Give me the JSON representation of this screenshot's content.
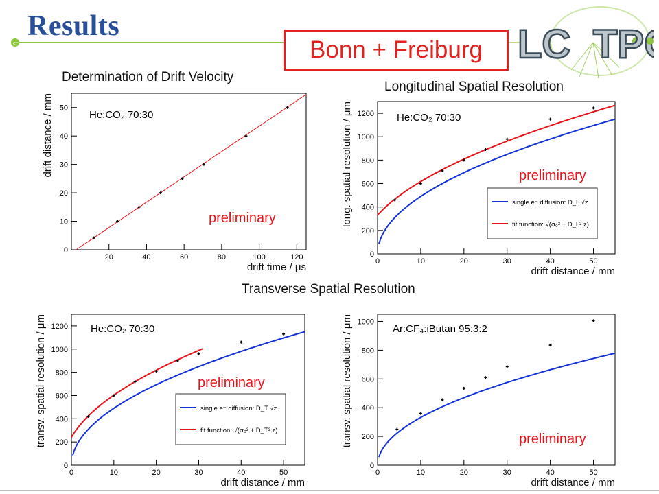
{
  "slide": {
    "title": "Results",
    "badge": "Bonn + Freiburg",
    "logo_text": "LC TPC"
  },
  "panels": {
    "drift_title": "Determination of Drift Velocity",
    "long_title": "Longitudinal Spatial Resolution",
    "trans_title": "Transverse Spatial Resolution"
  },
  "colors": {
    "title": "#2a4f9a",
    "badge": "#e0231e",
    "accent_green": "#8cc63f",
    "fit_red": "#e8141b",
    "diffusion_blue": "#1432d6"
  },
  "chart_data": [
    {
      "id": "drift",
      "type": "scatter",
      "xlabel": "drift time / μs",
      "ylabel": "drift distance / mm",
      "xlim": [
        0,
        125
      ],
      "ylim": [
        0,
        55
      ],
      "xticks": [
        20,
        40,
        60,
        80,
        100,
        120
      ],
      "yticks": [
        0,
        10,
        20,
        30,
        40,
        50
      ],
      "gas_label": "He:CO₂ 70:30",
      "preliminary": "preliminary",
      "points": [
        {
          "x": 12,
          "y": 4.2
        },
        {
          "x": 24.5,
          "y": 10
        },
        {
          "x": 36,
          "y": 15
        },
        {
          "x": 47.5,
          "y": 20
        },
        {
          "x": 59,
          "y": 25
        },
        {
          "x": 70.5,
          "y": 30
        },
        {
          "x": 93,
          "y": 40
        },
        {
          "x": 115,
          "y": 50
        }
      ],
      "fit_line": [
        [
          2.5,
          0
        ],
        [
          125,
          54.6
        ]
      ]
    },
    {
      "id": "long",
      "type": "scatter",
      "xlabel": "drift distance / mm",
      "ylabel": "long. spatial resolution / μm",
      "xlim": [
        0,
        55
      ],
      "ylim": [
        0,
        1300
      ],
      "xticks": [
        0,
        10,
        20,
        30,
        40,
        50
      ],
      "yticks": [
        0,
        200,
        400,
        600,
        800,
        1000,
        1200
      ],
      "gas_label": "He:CO₂ 70:30",
      "preliminary": "preliminary",
      "points": [
        {
          "x": 4,
          "y": 460
        },
        {
          "x": 10,
          "y": 600
        },
        {
          "x": 15,
          "y": 710
        },
        {
          "x": 20,
          "y": 800
        },
        {
          "x": 25,
          "y": 890
        },
        {
          "x": 30,
          "y": 980
        },
        {
          "x": 40,
          "y": 1150
        },
        {
          "x": 50,
          "y": 1245
        }
      ],
      "diffusion_coeff": 155,
      "fit": {
        "sigma0": 330,
        "D": 165,
        "xmax": 55
      },
      "legend": {
        "diffusion": "single e⁻ diffusion: D_L √z",
        "fit": "fit function: √(σ₀² + D_L² z)"
      }
    },
    {
      "id": "trans",
      "type": "scatter",
      "xlabel": "drift distance / mm",
      "ylabel": "transv. spatial resolution / μm",
      "xlim": [
        0,
        55
      ],
      "ylim": [
        0,
        1300
      ],
      "xticks": [
        0,
        10,
        20,
        30,
        40,
        50
      ],
      "yticks": [
        0,
        200,
        400,
        600,
        800,
        1000,
        1200
      ],
      "gas_label": "He:CO₂ 70:30",
      "preliminary": "preliminary",
      "points": [
        {
          "x": 4,
          "y": 420
        },
        {
          "x": 10,
          "y": 600
        },
        {
          "x": 15,
          "y": 720
        },
        {
          "x": 20,
          "y": 810
        },
        {
          "x": 25,
          "y": 900
        },
        {
          "x": 30,
          "y": 960
        },
        {
          "x": 40,
          "y": 1060
        },
        {
          "x": 50,
          "y": 1130
        }
      ],
      "diffusion_coeff": 155,
      "fit": {
        "sigma0": 240,
        "D": 175,
        "xmax": 31
      },
      "legend": {
        "diffusion": "single e⁻ diffusion: D_T √z",
        "fit": "fit function: √(σ₀² + D_T² z)"
      }
    },
    {
      "id": "ar",
      "type": "scatter",
      "xlabel": "drift distance / mm",
      "ylabel": "transv. spatial resolution / μm",
      "xlim": [
        0,
        55
      ],
      "ylim": [
        0,
        1050
      ],
      "xticks": [
        0,
        10,
        20,
        30,
        40,
        50
      ],
      "yticks": [
        0,
        200,
        400,
        600,
        800,
        1000
      ],
      "gas_label": "Ar:CF₄:iButan 95:3:2",
      "preliminary": "preliminary",
      "points": [
        {
          "x": 4.5,
          "y": 250
        },
        {
          "x": 10,
          "y": 360
        },
        {
          "x": 15,
          "y": 455
        },
        {
          "x": 20,
          "y": 535
        },
        {
          "x": 25,
          "y": 610
        },
        {
          "x": 30,
          "y": 685
        },
        {
          "x": 40,
          "y": 835
        },
        {
          "x": 50,
          "y": 1005
        }
      ],
      "diffusion_coeff": 105
    }
  ]
}
